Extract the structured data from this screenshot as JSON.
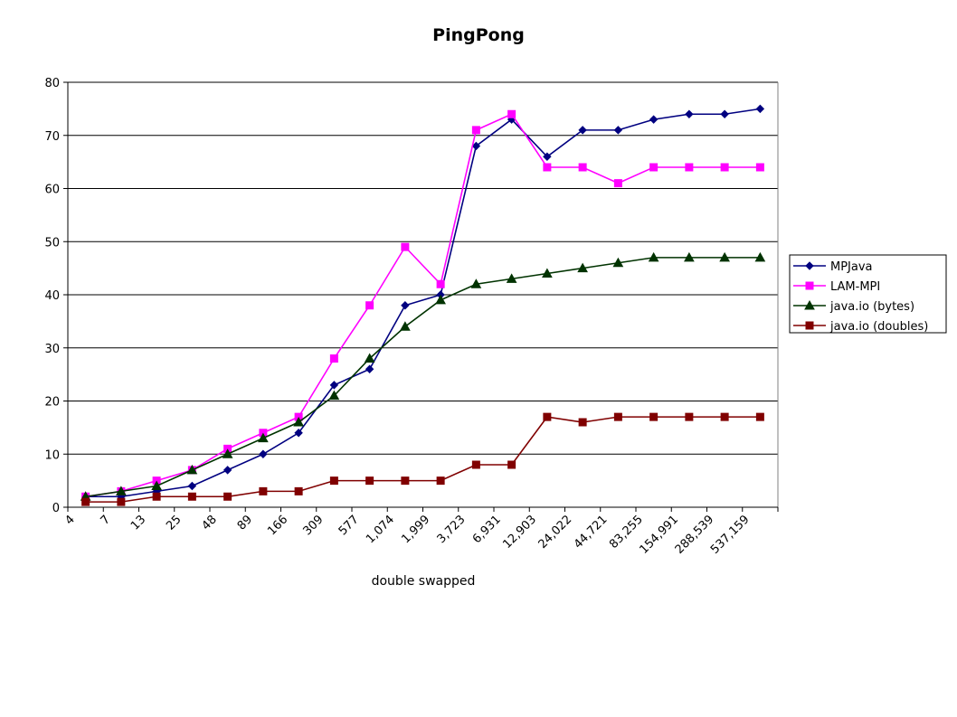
{
  "chart_data": {
    "type": "line",
    "title": "PingPong",
    "xlabel": "double swapped",
    "ylabel": "",
    "ylim": [
      0,
      80
    ],
    "y_ticks": [
      0,
      10,
      20,
      30,
      40,
      50,
      60,
      70,
      80
    ],
    "grid": "horizontal",
    "legend_position": "right",
    "categories": [
      "4",
      "7",
      "13",
      "25",
      "48",
      "89",
      "166",
      "309",
      "577",
      "1,074",
      "1,999",
      "3,723",
      "6,931",
      "12,903",
      "24,022",
      "44,721",
      "83,255",
      "154,991",
      "288,539",
      "537,159"
    ],
    "series": [
      {
        "name": "MPJava",
        "color": "#000080",
        "marker": "diamond",
        "values": [
          2,
          2,
          3,
          4,
          7,
          10,
          14,
          23,
          26,
          38,
          40,
          68,
          73,
          66,
          71,
          71,
          73,
          74,
          74,
          75
        ]
      },
      {
        "name": "LAM-MPI",
        "color": "#ff00ff",
        "marker": "square",
        "values": [
          2,
          3,
          5,
          7,
          11,
          14,
          17,
          28,
          38,
          49,
          42,
          71,
          74,
          64,
          64,
          61,
          64,
          64,
          64,
          64
        ]
      },
      {
        "name": "java.io (bytes)",
        "color": "#003300",
        "marker": "triangle",
        "values": [
          2,
          3,
          4,
          7,
          10,
          13,
          16,
          21,
          28,
          34,
          39,
          42,
          43,
          44,
          45,
          46,
          47,
          47,
          47,
          47
        ]
      },
      {
        "name": "java.io (doubles)",
        "color": "#800000",
        "marker": "square",
        "values": [
          1,
          1,
          2,
          2,
          2,
          3,
          3,
          5,
          5,
          5,
          5,
          8,
          8,
          17,
          16,
          17,
          17,
          17,
          17,
          17
        ]
      }
    ]
  }
}
